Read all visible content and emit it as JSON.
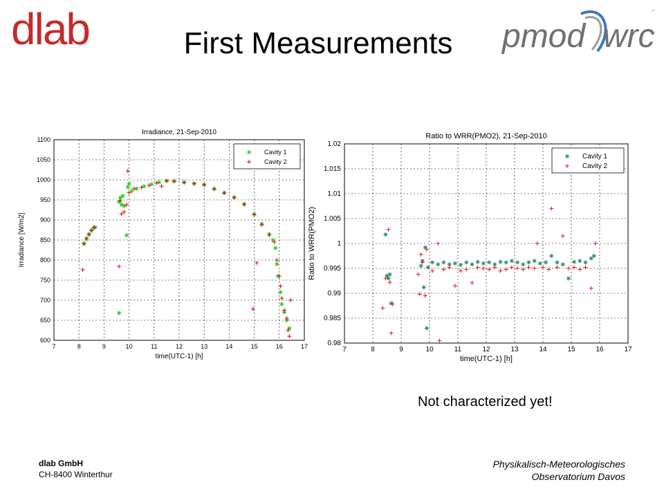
{
  "header": {
    "title": "First Measurements",
    "logo_left_text": "dlab",
    "logo_right_text_a": "pmod",
    "logo_right_text_b": "wrc"
  },
  "note": "Not characterized yet!",
  "footer": {
    "company": "dlab GmbH",
    "address": "CH-8400  Winterthur",
    "institute_line1": "Physikalisch-Meteorologisches",
    "institute_line2": "Observatorium Davos"
  },
  "colors": {
    "dlab_red": "#c42b2b",
    "dlab_grey": "#7a7a7a",
    "pmod_grey": "#707070",
    "pmod_blue": "#3a78c4",
    "cavity1_left": "#22cc22",
    "cavity2_left": "#dd0000",
    "cavity1_right": "#2a8a70",
    "cavity2_right": "#ee1111"
  },
  "chart_data": [
    {
      "type": "scatter",
      "title": "Irradiance, 21-Sep-2010",
      "xlabel": "time(UTC-1) [h]",
      "ylabel": "Irradiance [W/m2]",
      "xlim": [
        7,
        17
      ],
      "ylim": [
        600,
        1100
      ],
      "xticks": [
        7,
        8,
        9,
        10,
        11,
        12,
        13,
        14,
        15,
        16,
        17
      ],
      "yticks": [
        600,
        650,
        700,
        750,
        800,
        850,
        900,
        950,
        1000,
        1050,
        1100
      ],
      "grid": true,
      "legend_position": "top-right",
      "series": [
        {
          "name": "Cavity 1",
          "marker": "*",
          "points": [
            [
              8.2,
              840
            ],
            [
              8.3,
              852
            ],
            [
              8.4,
              863
            ],
            [
              8.5,
              873
            ],
            [
              8.6,
              880
            ],
            [
              8.65,
              882
            ],
            [
              9.6,
              945
            ],
            [
              9.65,
              955
            ],
            [
              9.7,
              938
            ],
            [
              9.75,
              960
            ],
            [
              9.8,
              935
            ],
            [
              9.6,
              668
            ],
            [
              9.9,
              862
            ],
            [
              9.95,
              982
            ],
            [
              10.0,
              990
            ],
            [
              10.1,
              972
            ],
            [
              10.3,
              978
            ],
            [
              10.6,
              984
            ],
            [
              10.9,
              989
            ],
            [
              11.2,
              994
            ],
            [
              11.5,
              997
            ],
            [
              11.8,
              997
            ],
            [
              12.2,
              994
            ],
            [
              12.6,
              991
            ],
            [
              13.0,
              988
            ],
            [
              13.4,
              978
            ],
            [
              13.8,
              968
            ],
            [
              14.2,
              957
            ],
            [
              14.6,
              940
            ],
            [
              15.0,
              915
            ],
            [
              15.3,
              890
            ],
            [
              15.6,
              865
            ],
            [
              15.75,
              850
            ],
            [
              15.85,
              830
            ],
            [
              15.9,
              790
            ],
            [
              15.95,
              760
            ],
            [
              16.05,
              720
            ],
            [
              16.1,
              690
            ],
            [
              16.2,
              670
            ],
            [
              16.3,
              650
            ],
            [
              16.4,
              630
            ]
          ]
        },
        {
          "name": "Cavity 2",
          "marker": "+",
          "points": [
            [
              8.15,
              776
            ],
            [
              8.2,
              842
            ],
            [
              8.3,
              855
            ],
            [
              8.4,
              865
            ],
            [
              8.5,
              875
            ],
            [
              8.6,
              882
            ],
            [
              9.6,
              784
            ],
            [
              9.65,
              948
            ],
            [
              9.7,
              915
            ],
            [
              9.8,
              920
            ],
            [
              9.9,
              938
            ],
            [
              9.95,
              1022
            ],
            [
              10.0,
              968
            ],
            [
              10.2,
              978
            ],
            [
              10.5,
              981
            ],
            [
              10.8,
              986
            ],
            [
              11.1,
              992
            ],
            [
              11.3,
              984
            ],
            [
              11.5,
              998
            ],
            [
              11.8,
              996
            ],
            [
              12.2,
              993
            ],
            [
              12.6,
              990
            ],
            [
              13.0,
              987
            ],
            [
              13.4,
              977
            ],
            [
              13.8,
              967
            ],
            [
              14.2,
              955
            ],
            [
              14.6,
              938
            ],
            [
              14.95,
              678
            ],
            [
              15.0,
              913
            ],
            [
              15.1,
              793
            ],
            [
              15.3,
              888
            ],
            [
              15.6,
              862
            ],
            [
              15.8,
              845
            ],
            [
              15.9,
              800
            ],
            [
              16.0,
              760
            ],
            [
              16.05,
              735
            ],
            [
              16.1,
              705
            ],
            [
              16.2,
              675
            ],
            [
              16.3,
              655
            ],
            [
              16.35,
              625
            ],
            [
              16.4,
              610
            ],
            [
              16.45,
              700
            ]
          ]
        }
      ]
    },
    {
      "type": "scatter",
      "title": "Ratio to WRR(PMO2), 21-Sep-2010",
      "xlabel": "time(UTC-1) [h]",
      "ylabel": "Ratio to WRR(PMO2)",
      "xlim": [
        7,
        17
      ],
      "ylim": [
        0.98,
        1.02
      ],
      "xticks": [
        7,
        8,
        9,
        10,
        11,
        12,
        13,
        14,
        15,
        16,
        17
      ],
      "yticks": [
        "0.98",
        "0.985",
        "0.99",
        "0.995",
        "1",
        "1.005",
        "1.01",
        "1.015",
        "1.02"
      ],
      "grid": true,
      "legend_position": "top-right",
      "series": [
        {
          "name": "Cavity 1",
          "marker": "*",
          "points": [
            [
              8.45,
              1.0018
            ],
            [
              8.5,
              0.9935
            ],
            [
              8.55,
              0.993
            ],
            [
              8.6,
              0.9938
            ],
            [
              8.65,
              0.988
            ],
            [
              9.7,
              0.9955
            ],
            [
              9.75,
              0.9965
            ],
            [
              9.8,
              0.9912
            ],
            [
              9.85,
              0.9992
            ],
            [
              9.9,
              0.983
            ],
            [
              9.95,
              0.9952
            ],
            [
              10.1,
              0.9962
            ],
            [
              10.3,
              0.9958
            ],
            [
              10.5,
              0.9962
            ],
            [
              10.7,
              0.9958
            ],
            [
              10.9,
              0.996
            ],
            [
              11.1,
              0.9957
            ],
            [
              11.3,
              0.9962
            ],
            [
              11.5,
              0.9958
            ],
            [
              11.7,
              0.9963
            ],
            [
              11.9,
              0.996
            ],
            [
              12.1,
              0.9962
            ],
            [
              12.3,
              0.9958
            ],
            [
              12.5,
              0.9963
            ],
            [
              12.7,
              0.9962
            ],
            [
              12.9,
              0.9965
            ],
            [
              13.1,
              0.9962
            ],
            [
              13.3,
              0.9958
            ],
            [
              13.5,
              0.9962
            ],
            [
              13.7,
              0.9965
            ],
            [
              13.9,
              0.996
            ],
            [
              14.1,
              0.9962
            ],
            [
              14.3,
              0.9975
            ],
            [
              14.5,
              0.9962
            ],
            [
              14.7,
              0.9958
            ],
            [
              14.9,
              0.993
            ],
            [
              15.1,
              0.9963
            ],
            [
              15.3,
              0.9965
            ],
            [
              15.5,
              0.9962
            ],
            [
              15.7,
              0.997
            ],
            [
              15.8,
              0.9975
            ]
          ]
        },
        {
          "name": "Cavity 2",
          "marker": "+",
          "points": [
            [
              8.35,
              0.987
            ],
            [
              8.45,
              0.993
            ],
            [
              8.55,
              1.0028
            ],
            [
              8.6,
              0.9922
            ],
            [
              8.65,
              0.982
            ],
            [
              8.7,
              0.9878
            ],
            [
              9.6,
              0.9938
            ],
            [
              9.65,
              0.9898
            ],
            [
              9.7,
              0.9978
            ],
            [
              9.75,
              0.9962
            ],
            [
              9.85,
              0.9895
            ],
            [
              9.9,
              0.9988
            ],
            [
              10.1,
              0.9945
            ],
            [
              10.3,
              1.0
            ],
            [
              10.35,
              0.9805
            ],
            [
              10.5,
              0.9948
            ],
            [
              10.7,
              0.9952
            ],
            [
              10.9,
              0.9915
            ],
            [
              11.1,
              0.9945
            ],
            [
              11.3,
              0.9948
            ],
            [
              11.5,
              0.9921
            ],
            [
              11.7,
              0.9952
            ],
            [
              11.9,
              0.995
            ],
            [
              12.1,
              0.9948
            ],
            [
              12.3,
              0.9952
            ],
            [
              12.5,
              0.9945
            ],
            [
              12.7,
              0.9948
            ],
            [
              12.9,
              0.9952
            ],
            [
              13.1,
              0.995
            ],
            [
              13.3,
              0.9948
            ],
            [
              13.5,
              0.9952
            ],
            [
              13.7,
              0.995
            ],
            [
              13.8,
              1.0
            ],
            [
              14.0,
              0.9952
            ],
            [
              14.2,
              0.9948
            ],
            [
              14.3,
              1.007
            ],
            [
              14.5,
              0.9952
            ],
            [
              14.7,
              1.0015
            ],
            [
              14.9,
              0.995
            ],
            [
              15.1,
              0.9952
            ],
            [
              15.3,
              0.9948
            ],
            [
              15.5,
              0.9952
            ],
            [
              15.7,
              0.991
            ],
            [
              15.85,
              1.0
            ]
          ]
        }
      ]
    }
  ]
}
